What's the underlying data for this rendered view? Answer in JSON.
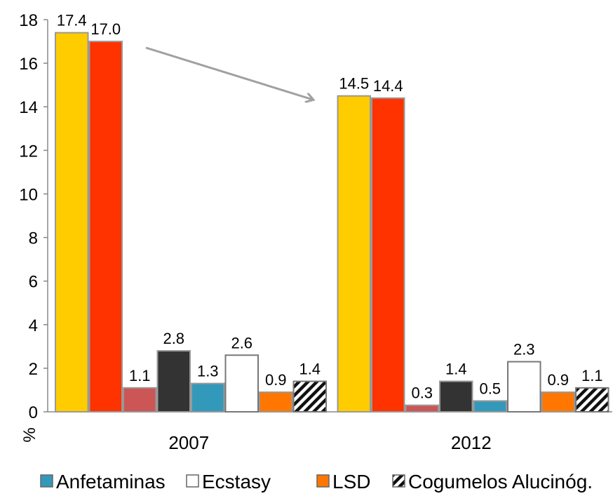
{
  "chart_data": {
    "type": "bar",
    "ylabel": "%",
    "ylim": [
      0,
      18
    ],
    "yticks": [
      0,
      2,
      4,
      6,
      8,
      10,
      12,
      14,
      16,
      18
    ],
    "categories": [
      "2007",
      "2012"
    ],
    "series": [
      {
        "name": "",
        "color": "#FFCC00",
        "values": [
          17.4,
          14.5
        ],
        "labels": [
          "17.4",
          "14.5"
        ]
      },
      {
        "name": "",
        "color": "#FF3300",
        "values": [
          17.0,
          14.4
        ],
        "labels": [
          "17.0",
          "14.4"
        ]
      },
      {
        "name": "",
        "color": "#CC5555",
        "values": [
          1.1,
          0.3
        ],
        "labels": [
          "1.1",
          "0.3"
        ]
      },
      {
        "name": "",
        "color": "#333333",
        "values": [
          2.8,
          1.4
        ],
        "labels": [
          "2.8",
          "1.4"
        ]
      },
      {
        "name": "Anfetaminas",
        "color": "#3399BB",
        "values": [
          1.3,
          0.5
        ],
        "labels": [
          "1.3",
          "0.5"
        ]
      },
      {
        "name": "Ecstasy",
        "color": "#FFFFFF",
        "values": [
          2.6,
          2.3
        ],
        "labels": [
          "2.6",
          "2.3"
        ]
      },
      {
        "name": "LSD",
        "color": "#FF7700",
        "values": [
          0.9,
          0.9
        ],
        "labels": [
          "0.9",
          "0.9"
        ]
      },
      {
        "name": "Cogumelos Alucinóg.",
        "color": "hatched",
        "values": [
          1.4,
          1.1
        ],
        "labels": [
          "1.4",
          "1.1"
        ]
      }
    ],
    "legend": {
      "placement": "bottom",
      "items": [
        "Anfetaminas",
        "Ecstasy",
        "LSD",
        "Cogumelos Alucinóg."
      ]
    },
    "annotation": {
      "type": "arrow",
      "from_category": "2007",
      "to_category": "2012",
      "color": "#A0A0A0"
    }
  }
}
